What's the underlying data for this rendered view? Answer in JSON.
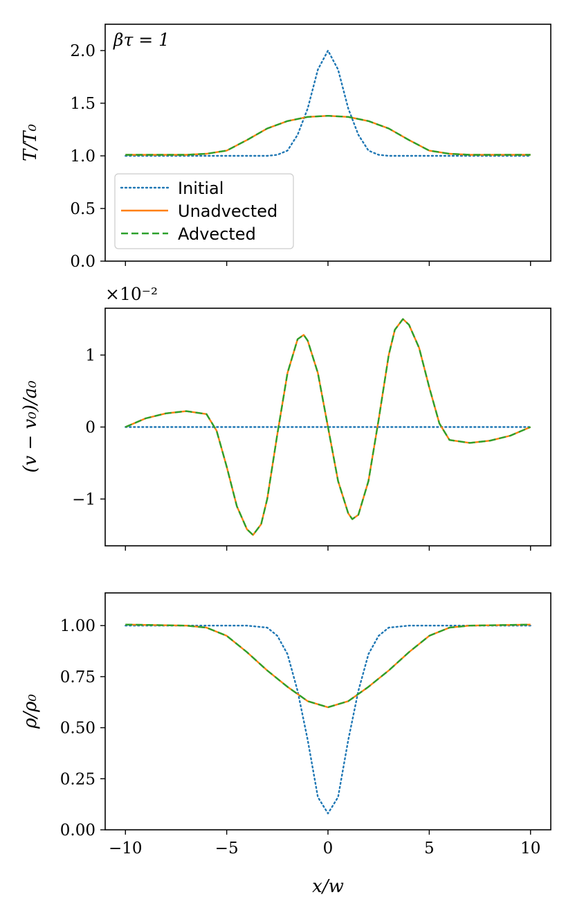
{
  "chart_data": [
    {
      "type": "line",
      "id": "temperature",
      "ylabel": "T/T₀",
      "annotation": "βτ = 1",
      "xlim": [
        -11,
        11
      ],
      "ylim": [
        0,
        2.25
      ],
      "xticks": [
        -10,
        -5,
        0,
        5,
        10
      ],
      "xtick_labels": [],
      "yticks": [
        0,
        0.5,
        1,
        1.5,
        2
      ],
      "ytick_labels": [
        "0.0",
        "0.5",
        "1.0",
        "1.5",
        "2.0"
      ],
      "legend": {
        "position": "lower-left",
        "entries": [
          "Initial",
          "Unadvected",
          "Advected"
        ]
      },
      "series": [
        {
          "name": "Initial",
          "style": "dotted",
          "color": "#1f77b4",
          "x": [
            -10,
            -6,
            -4,
            -3,
            -2.5,
            -2,
            -1.5,
            -1,
            -0.5,
            0,
            0.5,
            1,
            1.5,
            2,
            2.5,
            3,
            4,
            6,
            10
          ],
          "y": [
            1.0,
            1.0,
            1.0,
            1.0,
            1.01,
            1.05,
            1.2,
            1.45,
            1.82,
            2.0,
            1.82,
            1.45,
            1.2,
            1.05,
            1.01,
            1.0,
            1.0,
            1.0,
            1.0
          ]
        },
        {
          "name": "Unadvected",
          "style": "solid",
          "color": "#ff7f0e",
          "x": [
            -10,
            -7,
            -6,
            -5,
            -4,
            -3,
            -2,
            -1,
            0,
            1,
            2,
            3,
            4,
            5,
            6,
            7,
            10
          ],
          "y": [
            1.01,
            1.01,
            1.02,
            1.05,
            1.15,
            1.26,
            1.33,
            1.37,
            1.38,
            1.37,
            1.33,
            1.26,
            1.15,
            1.05,
            1.02,
            1.01,
            1.01
          ]
        },
        {
          "name": "Advected",
          "style": "dashed",
          "color": "#2ca02c",
          "x": [
            -10,
            -7,
            -6,
            -5,
            -4,
            -3,
            -2,
            -1,
            0,
            1,
            2,
            3,
            4,
            5,
            6,
            7,
            10
          ],
          "y": [
            1.01,
            1.01,
            1.02,
            1.05,
            1.15,
            1.26,
            1.33,
            1.37,
            1.38,
            1.37,
            1.33,
            1.26,
            1.15,
            1.05,
            1.02,
            1.01,
            1.01
          ]
        }
      ]
    },
    {
      "type": "line",
      "id": "velocity",
      "ylabel": "(v − v₀)/a₀",
      "scale_label": "×10⁻²",
      "xlim": [
        -11,
        11
      ],
      "ylim": [
        -1.65,
        1.65
      ],
      "xticks": [
        -10,
        -5,
        0,
        5,
        10
      ],
      "xtick_labels": [],
      "yticks": [
        -1,
        0,
        1
      ],
      "ytick_labels": [
        "−1",
        "0",
        "1"
      ],
      "series": [
        {
          "name": "Initial",
          "style": "dotted",
          "color": "#1f77b4",
          "x": [
            -10,
            10
          ],
          "y": [
            0,
            0
          ]
        },
        {
          "name": "Unadvected",
          "style": "solid",
          "color": "#ff7f0e",
          "x": [
            -10,
            -9,
            -8,
            -7,
            -6,
            -5.5,
            -5,
            -4.5,
            -4,
            -3.7,
            -3.3,
            -3,
            -2.5,
            -2,
            -1.5,
            -1.2,
            -1,
            -0.5,
            0,
            0.5,
            1,
            1.2,
            1.5,
            2,
            2.5,
            3,
            3.3,
            3.7,
            4,
            4.5,
            5,
            5.5,
            6,
            7,
            8,
            9,
            10
          ],
          "y": [
            0,
            0.12,
            0.19,
            0.22,
            0.18,
            -0.05,
            -0.55,
            -1.1,
            -1.42,
            -1.5,
            -1.35,
            -1.0,
            -0.1,
            0.75,
            1.22,
            1.28,
            1.2,
            0.75,
            0,
            -0.75,
            -1.2,
            -1.28,
            -1.22,
            -0.75,
            0.1,
            1.0,
            1.35,
            1.5,
            1.42,
            1.1,
            0.55,
            0.05,
            -0.18,
            -0.22,
            -0.19,
            -0.12,
            0
          ]
        },
        {
          "name": "Advected",
          "style": "dashed",
          "color": "#2ca02c",
          "x": [
            -10,
            -9,
            -8,
            -7,
            -6,
            -5.5,
            -5,
            -4.5,
            -4,
            -3.7,
            -3.3,
            -3,
            -2.5,
            -2,
            -1.5,
            -1.2,
            -1,
            -0.5,
            0,
            0.5,
            1,
            1.2,
            1.5,
            2,
            2.5,
            3,
            3.3,
            3.7,
            4,
            4.5,
            5,
            5.5,
            6,
            7,
            8,
            9,
            10
          ],
          "y": [
            0,
            0.12,
            0.19,
            0.22,
            0.18,
            -0.05,
            -0.55,
            -1.1,
            -1.42,
            -1.5,
            -1.35,
            -1.0,
            -0.1,
            0.75,
            1.22,
            1.28,
            1.2,
            0.75,
            0,
            -0.75,
            -1.2,
            -1.28,
            -1.22,
            -0.75,
            0.1,
            1.0,
            1.35,
            1.5,
            1.42,
            1.1,
            0.55,
            0.05,
            -0.18,
            -0.22,
            -0.19,
            -0.12,
            0
          ]
        }
      ]
    },
    {
      "type": "line",
      "id": "density",
      "ylabel": "ρ/ρ₀",
      "xlabel": "x/w",
      "xlim": [
        -11,
        11
      ],
      "ylim": [
        0,
        1.16
      ],
      "xticks": [
        -10,
        -5,
        0,
        5,
        10
      ],
      "xtick_labels": [
        "−10",
        "−5",
        "0",
        "5",
        "10"
      ],
      "yticks": [
        0,
        0.25,
        0.5,
        0.75,
        1
      ],
      "ytick_labels": [
        "0.00",
        "0.25",
        "0.50",
        "0.75",
        "1.00"
      ],
      "series": [
        {
          "name": "Initial",
          "style": "dotted",
          "color": "#1f77b4",
          "x": [
            -10,
            -6,
            -4,
            -3,
            -2.5,
            -2,
            -1.5,
            -1,
            -0.5,
            0,
            0.5,
            1,
            1.5,
            2,
            2.5,
            3,
            4,
            6,
            10
          ],
          "y": [
            1.0,
            1.0,
            1.0,
            0.99,
            0.95,
            0.86,
            0.68,
            0.44,
            0.16,
            0.08,
            0.16,
            0.44,
            0.68,
            0.86,
            0.95,
            0.99,
            1.0,
            1.0,
            1.0
          ]
        },
        {
          "name": "Unadvected",
          "style": "solid",
          "color": "#ff7f0e",
          "x": [
            -10,
            -7,
            -6,
            -5,
            -4,
            -3,
            -2,
            -1,
            0,
            1,
            2,
            3,
            4,
            5,
            6,
            7,
            10
          ],
          "y": [
            1.005,
            1.0,
            0.99,
            0.95,
            0.87,
            0.78,
            0.7,
            0.63,
            0.6,
            0.63,
            0.7,
            0.78,
            0.87,
            0.95,
            0.99,
            1.0,
            1.005
          ]
        },
        {
          "name": "Advected",
          "style": "dashed",
          "color": "#2ca02c",
          "x": [
            -10,
            -7,
            -6,
            -5,
            -4,
            -3,
            -2,
            -1,
            0,
            1,
            2,
            3,
            4,
            5,
            6,
            7,
            10
          ],
          "y": [
            1.005,
            1.0,
            0.99,
            0.95,
            0.87,
            0.78,
            0.7,
            0.63,
            0.6,
            0.63,
            0.7,
            0.78,
            0.87,
            0.95,
            0.99,
            1.0,
            1.005
          ]
        }
      ]
    }
  ]
}
